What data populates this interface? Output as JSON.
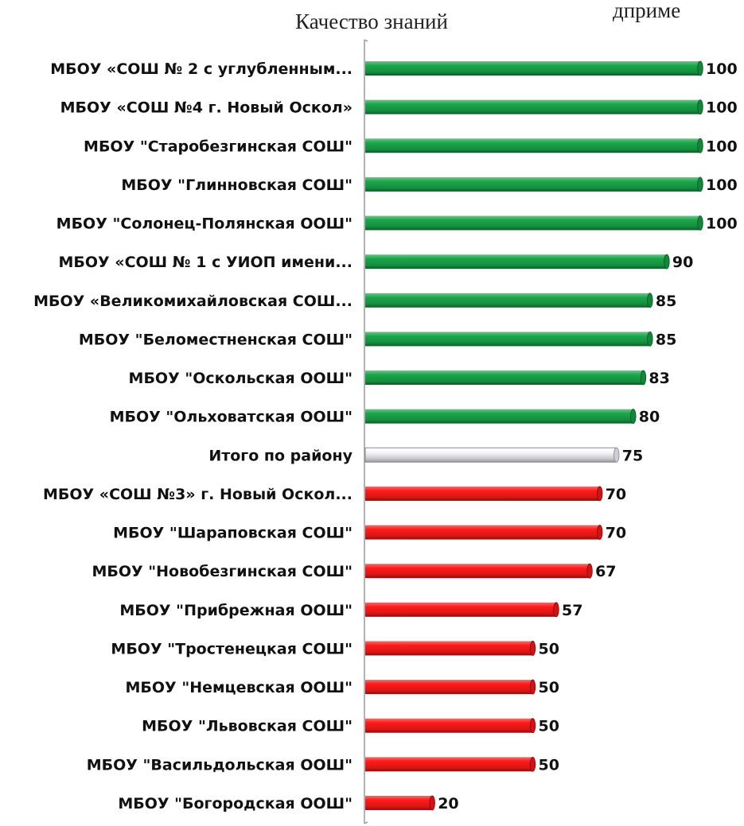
{
  "top_fragment": "дприме",
  "colors": {
    "above": "#1aa64a",
    "total": "#e6e6ea",
    "below": "#ff1a1a"
  },
  "chart_data": {
    "type": "bar",
    "orientation": "horizontal",
    "title": "Качество знаний",
    "xlabel": "",
    "ylabel": "",
    "xlim": [
      0,
      100
    ],
    "grid": false,
    "legend": "none",
    "categories": [
      "МБОУ «СОШ № 2 с углубленным...",
      "МБОУ «СОШ №4 г. Новый Оскол»",
      "МБОУ \"Старобезгинская СОШ\"",
      "МБОУ \"Глинновская СОШ\"",
      "МБОУ \"Солонец-Полянская ООШ\"",
      "МБОУ «СОШ № 1 с УИОП имени...",
      "МБОУ «Великомихайловская СОШ...",
      "МБОУ \"Беломестненская СОШ\"",
      "МБОУ \"Оскольская ООШ\"",
      "МБОУ \"Ольховатская ООШ\"",
      "Итого по району",
      "МБОУ «СОШ №3» г. Новый Оскол...",
      "МБОУ \"Шараповская СОШ\"",
      "МБОУ \"Новобезгинская СОШ\"",
      "МБОУ \"Прибрежная ООШ\"",
      "МБОУ \"Тростенецкая СОШ\"",
      "МБОУ \"Немцевская ООШ\"",
      "МБОУ \"Львовская СОШ\"",
      "МБОУ \"Васильдольская ООШ\"",
      "МБОУ \"Богородская ООШ\""
    ],
    "values": [
      100,
      100,
      100,
      100,
      100,
      90,
      85,
      85,
      83,
      80,
      75,
      70,
      70,
      67,
      57,
      50,
      50,
      50,
      50,
      20
    ],
    "groups": [
      "above",
      "above",
      "above",
      "above",
      "above",
      "above",
      "above",
      "above",
      "above",
      "above",
      "total",
      "below",
      "below",
      "below",
      "below",
      "below",
      "below",
      "below",
      "below",
      "below"
    ]
  }
}
